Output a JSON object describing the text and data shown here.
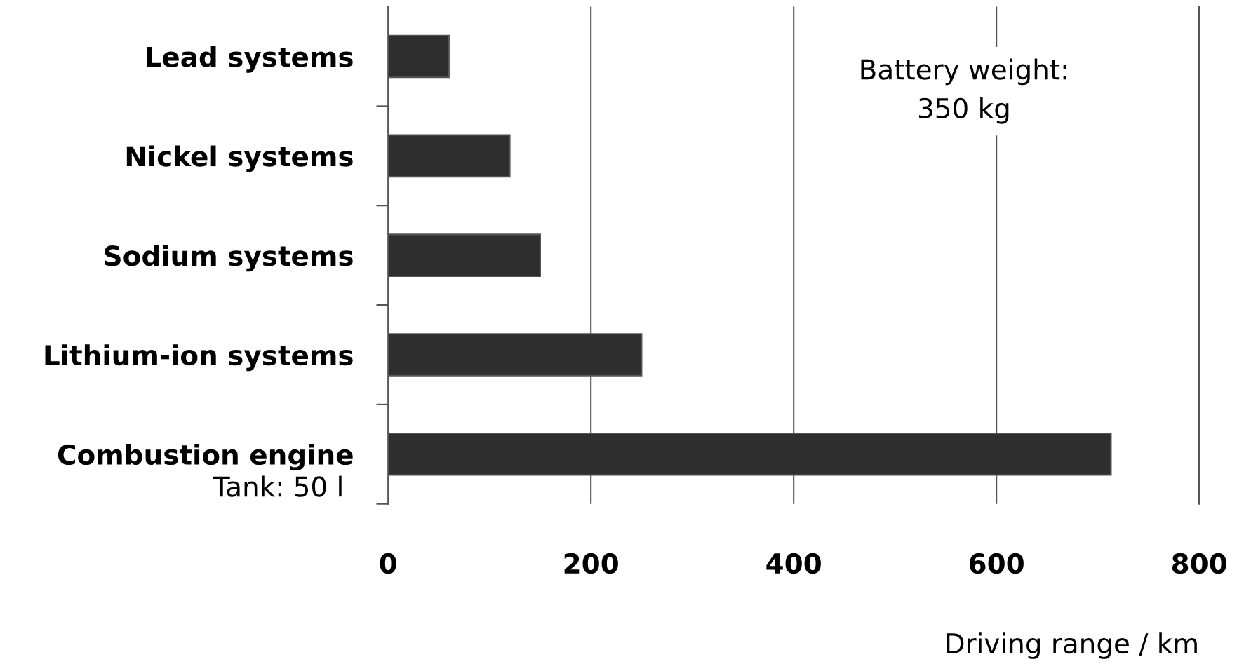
{
  "chart_data": {
    "type": "bar",
    "orientation": "horizontal",
    "categories": [
      "Lead systems",
      "Nickel systems",
      "Sodium systems",
      "Lithium-ion systems",
      "Combustion engine"
    ],
    "values": [
      60,
      120,
      150,
      250,
      713
    ],
    "color": "#2e2e2e",
    "xlabel": "Driving range / km",
    "xlim": [
      0,
      800
    ],
    "xticks": [
      0,
      200,
      400,
      600,
      800
    ],
    "grid": "x",
    "annotations": [
      "Battery weight:\n350 kg",
      "Tank: 50 l"
    ]
  }
}
